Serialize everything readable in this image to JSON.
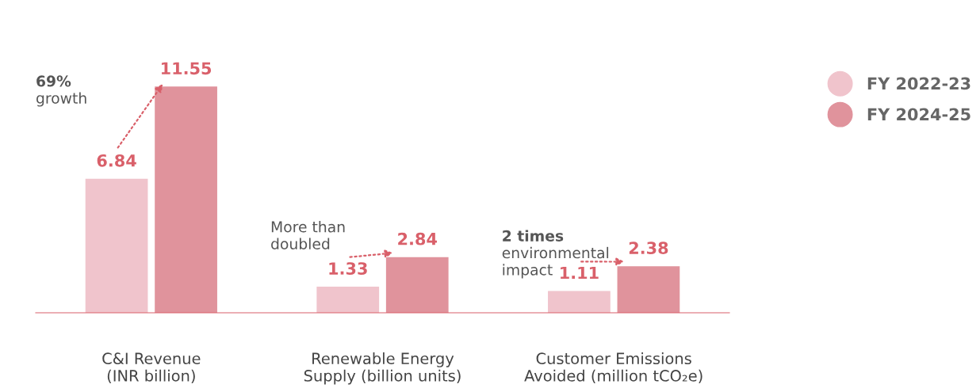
{
  "chart_data": {
    "type": "bar",
    "categories": [
      "C&I Revenue\n(INR billion)",
      "Renewable Energy\nSupply (billion units)",
      "Customer Emissions\nAvoided (million tCO₂e)"
    ],
    "series": [
      {
        "name": "FY 2022-23",
        "color": "#f0c4cc",
        "values": [
          6.84,
          1.33,
          1.11
        ]
      },
      {
        "name": "FY 2024-25",
        "color": "#e0939c",
        "values": [
          11.55,
          2.84,
          2.38
        ]
      }
    ],
    "data_labels": true,
    "annotations": [
      "69%\ngrowth",
      "More than\ndoubled",
      "2 times\nenvironmental\nimpact"
    ],
    "legend": "right"
  }
}
